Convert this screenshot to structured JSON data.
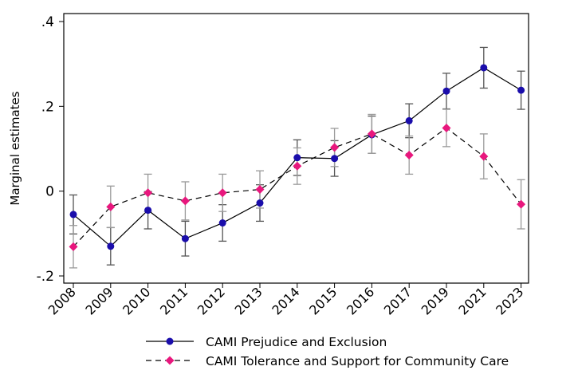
{
  "chart_data": {
    "type": "line",
    "xlabel": "",
    "ylabel": "Marginal estimates",
    "ylim": [
      -0.2,
      0.4
    ],
    "yticks": [
      -0.2,
      0,
      0.2,
      0.4
    ],
    "ytick_labels": [
      "-.2",
      "0",
      ".2",
      ".4"
    ],
    "categories": [
      "2008",
      "2009",
      "2010",
      "2011",
      "2012",
      "2013",
      "2014",
      "2015",
      "2016",
      "2017",
      "2019",
      "2021",
      "2023"
    ],
    "grid": false,
    "legend_position": "bottom",
    "series": [
      {
        "name": "CAMI Prejudice and Exclusion",
        "color": "#1a0dab",
        "line_style": "solid",
        "marker": "circle",
        "values": [
          -0.055,
          -0.13,
          -0.045,
          -0.112,
          -0.075,
          -0.028,
          0.079,
          0.077,
          0.133,
          0.166,
          0.236,
          0.291,
          0.238
        ],
        "ci_low": [
          -0.101,
          -0.174,
          -0.089,
          -0.153,
          -0.118,
          -0.071,
          0.037,
          0.035,
          0.089,
          0.126,
          0.194,
          0.243,
          0.193
        ],
        "ci_high": [
          -0.009,
          -0.086,
          -0.001,
          -0.071,
          -0.032,
          0.015,
          0.121,
          0.119,
          0.177,
          0.206,
          0.278,
          0.339,
          0.283
        ]
      },
      {
        "name": "CAMI Tolerance and Support for Community Care",
        "color": "#e8177d",
        "line_style": "dashed",
        "marker": "diamond",
        "values": [
          -0.131,
          -0.037,
          -0.004,
          -0.023,
          -0.004,
          0.004,
          0.059,
          0.103,
          0.135,
          0.085,
          0.149,
          0.082,
          -0.031
        ],
        "ci_low": [
          -0.181,
          -0.086,
          -0.048,
          -0.068,
          -0.048,
          -0.04,
          0.016,
          0.058,
          0.089,
          0.04,
          0.105,
          0.029,
          -0.089
        ],
        "ci_high": [
          -0.081,
          0.012,
          0.04,
          0.022,
          0.04,
          0.048,
          0.102,
          0.148,
          0.181,
          0.13,
          0.193,
          0.135,
          0.027
        ]
      }
    ]
  }
}
